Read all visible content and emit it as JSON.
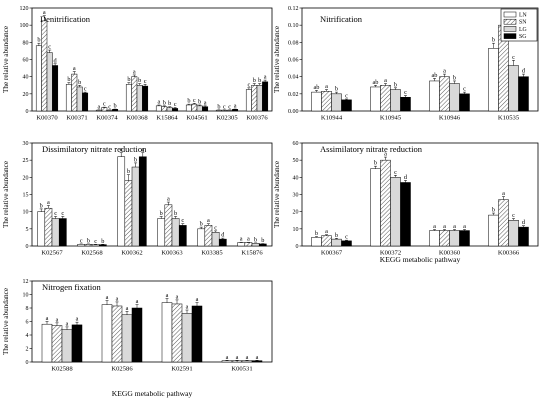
{
  "legend": {
    "position": "top-right",
    "items": [
      {
        "label": "LN",
        "fill": "white"
      },
      {
        "label": "SN",
        "fill": "hatch"
      },
      {
        "label": "LG",
        "fill": "light-gray"
      },
      {
        "label": "SG",
        "fill": "black"
      }
    ]
  },
  "colors": {
    "LN": "#ffffff",
    "SN": "hatch",
    "LG": "#d9d9d9",
    "SG": "#000000"
  },
  "chart_data": [
    {
      "type": "bar",
      "title": "Denitrification",
      "ylabel": "The relative abundance",
      "xlabel": "",
      "ylim": [
        0,
        120
      ],
      "yticks": [
        0,
        20,
        40,
        60,
        80,
        100,
        120
      ],
      "grid": false,
      "categories": [
        "K00370",
        "K00371",
        "K00374",
        "K00368",
        "K15864",
        "K04561",
        "K02305",
        "K00376"
      ],
      "series": [
        {
          "name": "LN",
          "values": [
            76,
            31,
            1,
            31,
            6,
            7,
            1,
            25
          ],
          "errors": [
            3,
            2,
            0.3,
            2,
            1,
            1,
            0.3,
            2
          ]
        },
        {
          "name": "SN",
          "values": [
            105,
            43,
            4,
            40,
            5,
            8,
            1,
            30
          ],
          "errors": [
            6,
            3,
            0.5,
            2,
            1,
            1,
            0.3,
            2
          ]
        },
        {
          "name": "LG",
          "values": [
            68,
            28,
            1,
            30,
            4,
            6,
            1,
            30
          ],
          "errors": [
            3,
            2,
            0.3,
            2,
            1,
            1,
            0.3,
            2
          ]
        },
        {
          "name": "SG",
          "values": [
            53,
            21,
            2,
            29,
            3,
            5,
            2,
            34
          ],
          "errors": [
            2,
            1,
            0.3,
            2,
            1,
            1,
            0.3,
            2
          ]
        }
      ],
      "significance": [
        [
          "b",
          "a",
          "c",
          "d"
        ],
        [
          "b",
          "a",
          "b",
          "c"
        ],
        [
          "a",
          "c",
          "c",
          "b"
        ],
        [
          "b",
          "a",
          "b",
          "c"
        ],
        [
          "a",
          "b",
          "b",
          "c"
        ],
        [
          "b",
          "c",
          "b",
          "a"
        ],
        [
          "b",
          "c",
          "c",
          "a"
        ],
        [
          "c",
          "b",
          "b",
          "a"
        ]
      ]
    },
    {
      "type": "bar",
      "title": "Nitrification",
      "ylabel": "The relative abundance",
      "xlabel": "",
      "ylim": [
        0,
        0.12
      ],
      "yticks": [
        0,
        0.02,
        0.04,
        0.06,
        0.08,
        0.1,
        0.12
      ],
      "ytick_labels": [
        "0.00",
        "0.02",
        "0.04",
        "0.06",
        "0.08",
        "0.10",
        "0.12"
      ],
      "grid": false,
      "categories": [
        "K10944",
        "K10945",
        "K10946",
        "K10535"
      ],
      "series": [
        {
          "name": "LN",
          "values": [
            0.022,
            0.028,
            0.035,
            0.073
          ],
          "errors": [
            0.002,
            0.002,
            0.003,
            0.006
          ]
        },
        {
          "name": "SN",
          "values": [
            0.023,
            0.03,
            0.04,
            0.1
          ],
          "errors": [
            0.002,
            0.002,
            0.003,
            0.006
          ]
        },
        {
          "name": "LG",
          "values": [
            0.02,
            0.025,
            0.032,
            0.053
          ],
          "errors": [
            0.002,
            0.002,
            0.003,
            0.006
          ]
        },
        {
          "name": "SG",
          "values": [
            0.013,
            0.016,
            0.02,
            0.04
          ],
          "errors": [
            0.001,
            0.002,
            0.002,
            0.003
          ]
        }
      ],
      "significance": [
        [
          "ab",
          "a",
          "b",
          "c"
        ],
        [
          "ab",
          "a",
          "b",
          "c"
        ],
        [
          "ab",
          "a",
          "b",
          "c"
        ],
        [
          "b",
          "a",
          "c",
          "d"
        ]
      ]
    },
    {
      "type": "bar",
      "title": "Dissimilatory nitrate reduction",
      "ylabel": "The relative abundance",
      "xlabel": "",
      "ylim": [
        0,
        30
      ],
      "yticks": [
        0,
        5,
        10,
        15,
        20,
        25,
        30
      ],
      "grid": false,
      "categories": [
        "K02567",
        "K02568",
        "K00362",
        "K00363",
        "K03385",
        "K15876"
      ],
      "series": [
        {
          "name": "LN",
          "values": [
            10,
            0.5,
            26,
            8,
            5,
            1
          ],
          "errors": [
            0.8,
            0.1,
            1.2,
            0.6,
            0.5,
            0.1
          ]
        },
        {
          "name": "SN",
          "values": [
            11,
            0.5,
            19,
            12,
            6,
            1
          ],
          "errors": [
            0.8,
            0.1,
            1.8,
            0.8,
            0.5,
            0.1
          ]
        },
        {
          "name": "LG",
          "values": [
            8,
            0.4,
            23,
            8,
            4,
            0.8
          ],
          "errors": [
            0.6,
            0.1,
            1.2,
            0.6,
            0.4,
            0.1
          ]
        },
        {
          "name": "SG",
          "values": [
            8,
            0.4,
            26,
            6,
            2,
            0.6
          ],
          "errors": [
            0.6,
            0.1,
            1.2,
            0.5,
            0.3,
            0.1
          ]
        }
      ],
      "significance": [
        [
          "b",
          "a",
          "c",
          "c"
        ],
        [
          "c",
          "b",
          "c",
          "b"
        ],
        [
          "a",
          "b",
          "b",
          "a"
        ],
        [
          "b",
          "a",
          "b",
          "c"
        ],
        [
          "b",
          "a",
          "c",
          "d"
        ],
        [
          "a",
          "a",
          "b",
          "b"
        ]
      ]
    },
    {
      "type": "bar",
      "title": "Assimilatory nitrate reduction",
      "ylabel": "The relative abundance",
      "xlabel": "KEGG metabolic pathway",
      "ylim": [
        0,
        60
      ],
      "yticks": [
        0,
        10,
        20,
        30,
        40,
        50,
        60
      ],
      "grid": false,
      "categories": [
        "K00367",
        "K00372",
        "K00360",
        "K00366"
      ],
      "series": [
        {
          "name": "LN",
          "values": [
            5,
            45,
            9,
            18
          ],
          "errors": [
            0.5,
            1.5,
            0.6,
            1.2
          ]
        },
        {
          "name": "SN",
          "values": [
            6,
            50,
            9,
            27
          ],
          "errors": [
            0.6,
            1.8,
            0.6,
            1.8
          ]
        },
        {
          "name": "LG",
          "values": [
            4,
            40,
            9,
            15
          ],
          "errors": [
            0.5,
            1.2,
            0.6,
            1.0
          ]
        },
        {
          "name": "SG",
          "values": [
            3,
            37,
            9,
            11
          ],
          "errors": [
            0.4,
            1.2,
            0.6,
            0.8
          ]
        }
      ],
      "significance": [
        [
          "b",
          "a",
          "b",
          "c"
        ],
        [
          "b",
          "a",
          "c",
          "d"
        ],
        [
          "a",
          "a",
          "a",
          "a"
        ],
        [
          "b",
          "a",
          "c",
          "d"
        ]
      ]
    },
    {
      "type": "bar",
      "title": "Nitrogen fixation",
      "ylabel": "The relative abundance",
      "xlabel": "KEGG metabolic pathway",
      "ylim": [
        0,
        12
      ],
      "yticks": [
        0,
        2,
        4,
        6,
        8,
        10,
        12
      ],
      "grid": false,
      "categories": [
        "K02588",
        "K02586",
        "K02591",
        "K00531"
      ],
      "series": [
        {
          "name": "LN",
          "values": [
            5.6,
            8.5,
            8.8,
            0.2
          ],
          "errors": [
            0.4,
            0.6,
            0.6,
            0.05
          ]
        },
        {
          "name": "SN",
          "values": [
            5.4,
            8.3,
            8.6,
            0.2
          ],
          "errors": [
            0.4,
            0.6,
            0.6,
            0.05
          ]
        },
        {
          "name": "LG",
          "values": [
            4.8,
            7.0,
            7.2,
            0.2
          ],
          "errors": [
            0.4,
            0.5,
            0.5,
            0.05
          ]
        },
        {
          "name": "SG",
          "values": [
            5.5,
            8.0,
            8.3,
            0.2
          ],
          "errors": [
            0.4,
            0.5,
            0.5,
            0.05
          ]
        }
      ],
      "significance": [
        [
          "a",
          "a",
          "a",
          "a"
        ],
        [
          "a",
          "a",
          "a",
          "a"
        ],
        [
          "a",
          "a",
          "a",
          "a"
        ],
        [
          "a",
          "a",
          "a",
          "a"
        ]
      ]
    }
  ]
}
